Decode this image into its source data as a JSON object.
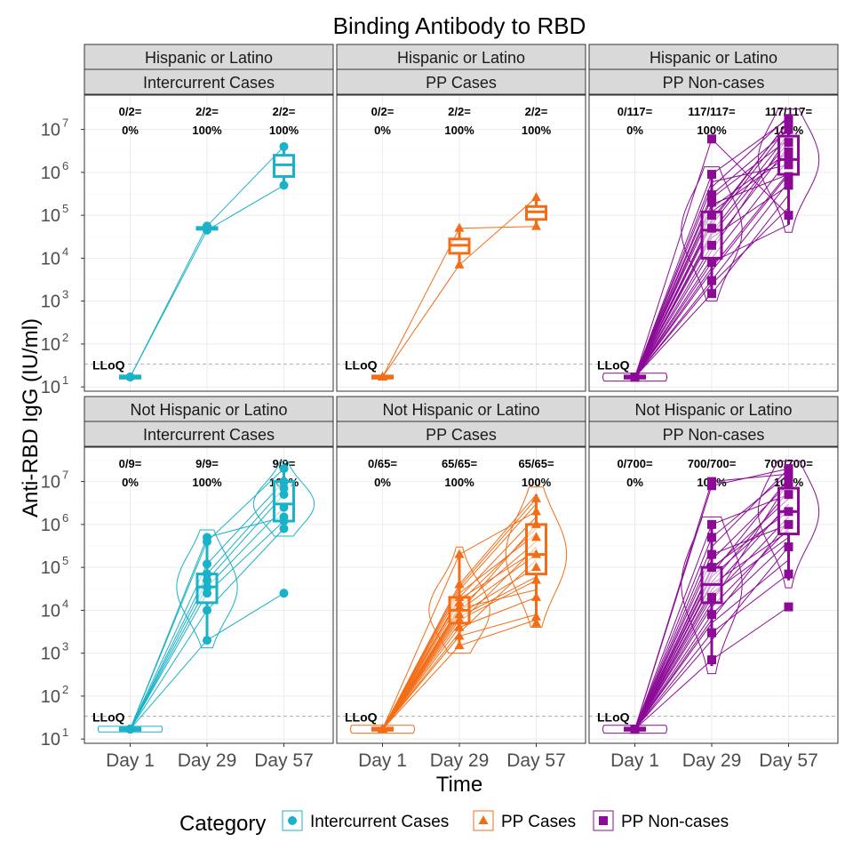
{
  "chart_data": {
    "type": "line",
    "title": "Binding Antibody to RBD",
    "xlabel": "Time",
    "ylabel": "Anti-RBD IgG (IU/ml)",
    "y_scale": "log10",
    "ylim_log10": [
      0.9,
      7.8
    ],
    "categories": [
      "Day 1",
      "Day 29",
      "Day 57"
    ],
    "lloq_label": "LLoQ",
    "lloq_value": 34,
    "grid": true,
    "legend_position": "bottom",
    "legend_title": "Category",
    "legend": [
      {
        "label": "Intercurrent Cases",
        "color": "#1ab2c8",
        "shape": "circle"
      },
      {
        "label": "PP Cases",
        "color": "#f36d17",
        "shape": "triangle"
      },
      {
        "label": "PP Non-cases",
        "color": "#8b0b96",
        "shape": "square"
      }
    ],
    "y_tick_labels": [
      "10",
      "10",
      "10",
      "10",
      "10",
      "10",
      "10"
    ],
    "y_tick_exponents": [
      "1",
      "2",
      "3",
      "4",
      "5",
      "6",
      "7"
    ],
    "rows": [
      "Hispanic or Latino",
      "Not Hispanic or Latino"
    ],
    "panels": [
      {
        "row_label": "Hispanic or Latino",
        "col_label": "Intercurrent Cases",
        "category": "Intercurrent Cases",
        "resp_counts": [
          "0/2=",
          "2/2=",
          "2/2="
        ],
        "resp_pcts": [
          "0%",
          "100%",
          "100%"
        ],
        "medians": [
          17,
          50000,
          1500000
        ],
        "q1": [
          16,
          48000,
          800000
        ],
        "q3": [
          18,
          52000,
          2500000
        ],
        "wlo": [
          16,
          45000,
          500000
        ],
        "whi": [
          18,
          56000,
          4000000
        ],
        "points": [
          [
            17,
            45000,
            500000
          ],
          [
            17,
            56000,
            4000000
          ]
        ],
        "subjects": [
          [
            17,
            45000,
            500000
          ],
          [
            17,
            56000,
            4000000
          ]
        ],
        "violin": false
      },
      {
        "row_label": "Hispanic or Latino",
        "col_label": "PP Cases",
        "category": "PP Cases",
        "resp_counts": [
          "0/2=",
          "2/2=",
          "2/2="
        ],
        "resp_pcts": [
          "0%",
          "100%",
          "100%"
        ],
        "medians": [
          17,
          20000,
          120000
        ],
        "q1": [
          16,
          13000,
          80000
        ],
        "q3": [
          18,
          28000,
          160000
        ],
        "wlo": [
          16,
          7000,
          55000
        ],
        "whi": [
          18,
          50000,
          260000
        ],
        "points": [
          [
            17,
            7000,
            260000
          ],
          [
            17,
            50000,
            55000
          ]
        ],
        "subjects": [
          [
            17,
            7000,
            260000
          ],
          [
            17,
            50000,
            55000
          ]
        ],
        "violin": false
      },
      {
        "row_label": "Hispanic or Latino",
        "col_label": "PP Non-cases",
        "category": "PP Non-cases",
        "resp_counts": [
          "0/117=",
          "117/117=",
          "117/117="
        ],
        "resp_pcts": [
          "0%",
          "100%",
          "100%"
        ],
        "medians": [
          17,
          45000,
          2000000
        ],
        "q1": [
          16,
          10000,
          900000
        ],
        "q3": [
          18,
          120000,
          7000000
        ],
        "wlo": [
          15,
          1500,
          60000
        ],
        "whi": [
          19,
          900000,
          20000000
        ],
        "points": [
          [
            17,
            6000000,
            100000
          ],
          [
            17,
            900000,
            18000000
          ],
          [
            17,
            1500,
            3000000
          ],
          [
            17,
            3000,
            500000
          ],
          [
            17,
            300000,
            15000000
          ],
          [
            17,
            20000,
            800000
          ],
          [
            17,
            100000,
            10000000
          ],
          [
            17,
            8000,
            2000000
          ],
          [
            17,
            50000,
            5000000
          ],
          [
            17,
            200000,
            1500000
          ]
        ],
        "subjects": [
          [
            17,
            1500,
            300000
          ],
          [
            17,
            3000,
            600000
          ],
          [
            17,
            6000,
            1000000
          ],
          [
            17,
            10000,
            2000000
          ],
          [
            17,
            20000,
            4000000
          ],
          [
            17,
            40000,
            8000000
          ],
          [
            17,
            80000,
            15000000
          ],
          [
            17,
            150000,
            3000000
          ],
          [
            17,
            300000,
            10000000
          ],
          [
            17,
            600000,
            1500000
          ],
          [
            17,
            900000,
            18000000
          ],
          [
            17,
            5000,
            900000
          ],
          [
            17,
            15000,
            7000000
          ],
          [
            17,
            30000,
            500000
          ],
          [
            17,
            60000,
            12000000
          ],
          [
            17,
            120000,
            2500000
          ],
          [
            17,
            250000,
            6000000
          ],
          [
            17,
            450000,
            20000000
          ],
          [
            17,
            2500,
            150000
          ],
          [
            17,
            8000,
            60000
          ],
          [
            17,
            6000000,
            100000
          ],
          [
            17,
            70000,
            16000000
          ],
          [
            17,
            35000,
            5000000
          ],
          [
            17,
            180000,
            900000
          ]
        ],
        "violin": true
      },
      {
        "row_label": "Not Hispanic or Latino",
        "col_label": "Intercurrent Cases",
        "category": "Intercurrent Cases",
        "resp_counts": [
          "0/9=",
          "9/9=",
          "9/9="
        ],
        "resp_pcts": [
          "0%",
          "100%",
          "100%"
        ],
        "medians": [
          17,
          35000,
          3000000
        ],
        "q1": [
          16,
          15000,
          1200000
        ],
        "q3": [
          18,
          70000,
          10000000
        ],
        "wlo": [
          16,
          2000,
          800000
        ],
        "whi": [
          18,
          500000,
          20000000
        ],
        "points": [
          [
            17,
            2000,
            25000
          ],
          [
            17,
            10000,
            800000
          ],
          [
            17,
            25000,
            1200000
          ],
          [
            17,
            35000,
            2500000
          ],
          [
            17,
            50000,
            5000000
          ],
          [
            17,
            70000,
            7000000
          ],
          [
            17,
            120000,
            10000000
          ],
          [
            17,
            400000,
            20000000
          ],
          [
            17,
            500000,
            1500000
          ]
        ],
        "subjects": [
          [
            17,
            2000,
            25000
          ],
          [
            17,
            10000,
            800000
          ],
          [
            17,
            25000,
            1200000
          ],
          [
            17,
            35000,
            2500000
          ],
          [
            17,
            50000,
            5000000
          ],
          [
            17,
            70000,
            7000000
          ],
          [
            17,
            120000,
            10000000
          ],
          [
            17,
            400000,
            20000000
          ],
          [
            17,
            500000,
            1500000
          ]
        ],
        "violin": true
      },
      {
        "row_label": "Not Hispanic or Latino",
        "col_label": "PP Cases",
        "category": "PP Cases",
        "resp_counts": [
          "0/65=",
          "65/65=",
          "65/65="
        ],
        "resp_pcts": [
          "0%",
          "100%",
          "100%"
        ],
        "medians": [
          17,
          10000,
          200000
        ],
        "q1": [
          16,
          5000,
          70000
        ],
        "q3": [
          18,
          20000,
          1000000
        ],
        "wlo": [
          15,
          1500,
          6000
        ],
        "whi": [
          19,
          200000,
          5000000
        ],
        "points": [
          [
            17,
            1500,
            5000
          ],
          [
            17,
            2500,
            7000
          ],
          [
            17,
            4000,
            20000
          ],
          [
            17,
            6000,
            50000
          ],
          [
            17,
            8000,
            100000
          ],
          [
            17,
            12000,
            200000
          ],
          [
            17,
            20000,
            500000
          ],
          [
            17,
            40000,
            1000000
          ],
          [
            17,
            200000,
            4000000
          ],
          [
            17,
            15000,
            2000000
          ]
        ],
        "subjects": [
          [
            17,
            1500,
            6000
          ],
          [
            17,
            2500,
            8000
          ],
          [
            17,
            4000,
            20000
          ],
          [
            17,
            6000,
            50000
          ],
          [
            17,
            8000,
            100000
          ],
          [
            17,
            10000,
            200000
          ],
          [
            17,
            12000,
            400000
          ],
          [
            17,
            15000,
            800000
          ],
          [
            17,
            20000,
            1500000
          ],
          [
            17,
            30000,
            3000000
          ],
          [
            17,
            40000,
            5000000
          ],
          [
            17,
            200000,
            2000000
          ],
          [
            17,
            3000,
            150000
          ],
          [
            17,
            5000,
            300000
          ],
          [
            17,
            7000,
            60000
          ],
          [
            17,
            9000,
            1000000
          ],
          [
            17,
            25000,
            600000
          ],
          [
            17,
            18000,
            250000
          ],
          [
            17,
            11000,
            30000
          ],
          [
            17,
            35000,
            4000000
          ]
        ],
        "violin": true
      },
      {
        "row_label": "Not Hispanic or Latino",
        "col_label": "PP Non-cases",
        "category": "PP Non-cases",
        "resp_counts": [
          "0/700=",
          "700/700=",
          "700/700="
        ],
        "resp_pcts": [
          "0%",
          "100%",
          "100%"
        ],
        "medians": [
          17,
          40000,
          2000000
        ],
        "q1": [
          16,
          15000,
          600000
        ],
        "q3": [
          18,
          100000,
          7000000
        ],
        "wlo": [
          15,
          500,
          50000
        ],
        "whi": [
          19,
          1000000,
          20000000
        ],
        "points": [
          [
            17,
            700,
            12000
          ],
          [
            17,
            3000,
            70000
          ],
          [
            17,
            10000000,
            15000000
          ],
          [
            17,
            8000000,
            20000000
          ],
          [
            17,
            1000000,
            5000000
          ],
          [
            17,
            500000,
            12000000
          ],
          [
            17,
            100000,
            1000000
          ],
          [
            17,
            20000,
            300000
          ],
          [
            17,
            8000,
            2000000
          ],
          [
            17,
            200000,
            9000000
          ]
        ],
        "subjects": [
          [
            17,
            700,
            12000
          ],
          [
            17,
            3000,
            70000
          ],
          [
            17,
            5000,
            150000
          ],
          [
            17,
            8000,
            400000
          ],
          [
            17,
            12000,
            800000
          ],
          [
            17,
            20000,
            1500000
          ],
          [
            17,
            30000,
            3000000
          ],
          [
            17,
            45000,
            6000000
          ],
          [
            17,
            70000,
            12000000
          ],
          [
            17,
            100000,
            2000000
          ],
          [
            17,
            150000,
            9000000
          ],
          [
            17,
            300000,
            20000000
          ],
          [
            17,
            500000,
            15000000
          ],
          [
            17,
            1000000,
            5000000
          ],
          [
            17,
            8000000,
            20000000
          ],
          [
            17,
            10000000,
            15000000
          ],
          [
            17,
            25000,
            500000
          ],
          [
            17,
            60000,
            2500000
          ],
          [
            17,
            2000,
            300000
          ],
          [
            17,
            15000,
            10000000
          ],
          [
            17,
            40000,
            700000
          ],
          [
            17,
            200000,
            1000000
          ],
          [
            17,
            90000,
            4000000
          ],
          [
            17,
            6000,
            1200000
          ]
        ],
        "violin": true
      }
    ]
  }
}
